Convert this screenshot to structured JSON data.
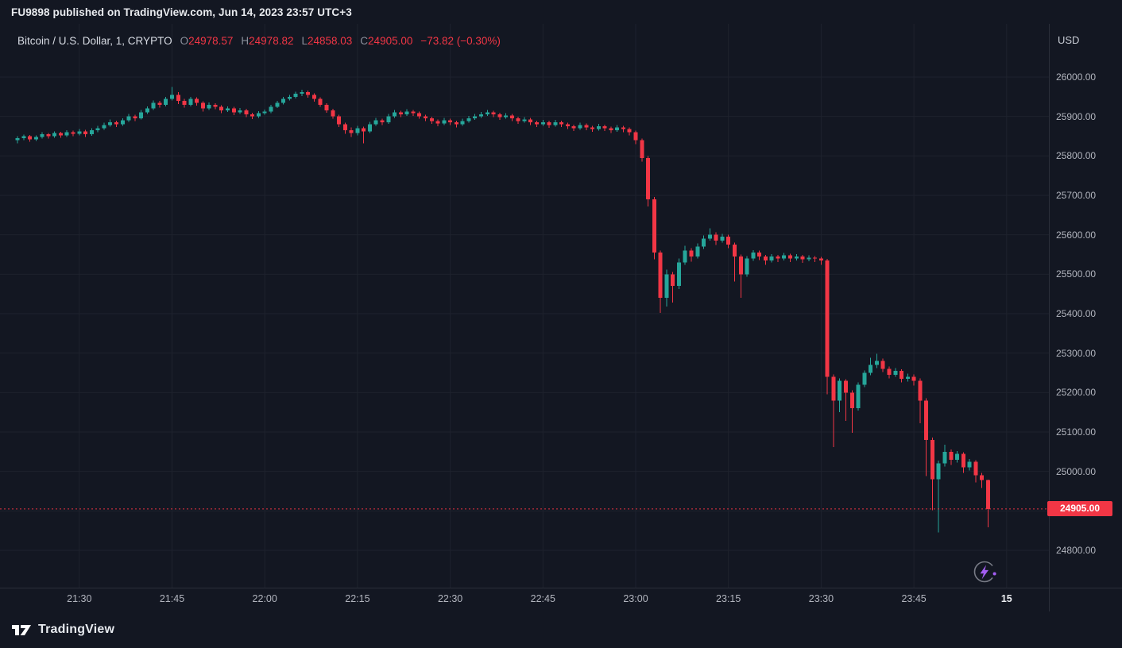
{
  "publish_bar": {
    "text": "FU9898 published on TradingView.com, Jun 14, 2023 23:57 UTC+3"
  },
  "header": {
    "symbol": "Bitcoin / U.S. Dollar, 1, CRYPTO",
    "ohlc": {
      "o_label": "O",
      "o_value": "24978.57",
      "h_label": "H",
      "h_value": "24978.82",
      "l_label": "L",
      "l_value": "24858.03",
      "c_label": "C",
      "c_value": "24905.00",
      "change": "−73.82 (−0.30%)"
    }
  },
  "price_axis": {
    "currency": "USD",
    "labels": [
      "26000.00",
      "25900.00",
      "25800.00",
      "25700.00",
      "25600.00",
      "25500.00",
      "25400.00",
      "25300.00",
      "25200.00",
      "25100.00",
      "25000.00",
      "24900.00",
      "24800.00"
    ],
    "current_price_label": "24905.00"
  },
  "footer": {
    "brand": "TradingView"
  },
  "colors": {
    "background": "#131722",
    "grid": "#1e222d",
    "separator": "#2a2e39",
    "up": "#26a69a",
    "down": "#f23645",
    "axis_text": "#b2b5be",
    "accent_purple": "#a35df2"
  },
  "chart_data": {
    "type": "candlestick",
    "title": "Bitcoin / U.S. Dollar",
    "symbol": "BTCUSD",
    "interval_minutes": 1,
    "exchange": "CRYPTO",
    "date": "Jun 14, 2023",
    "start_time": "21:20",
    "end_time": "23:57",
    "ylabel": "USD",
    "y_gridlines": [
      26000,
      25900,
      25800,
      25700,
      25600,
      25500,
      25400,
      25300,
      25200,
      25100,
      25000,
      24900,
      24800
    ],
    "current_price": 24905.0,
    "last_candle_ohlc": {
      "open": 24978.57,
      "high": 24978.82,
      "low": 24858.03,
      "close": 24905.0,
      "change": -73.82,
      "change_pct": -0.3
    },
    "time_ticks": [
      {
        "label": "21:30",
        "index": 10
      },
      {
        "label": "21:45",
        "index": 25
      },
      {
        "label": "22:00",
        "index": 40
      },
      {
        "label": "22:15",
        "index": 55
      },
      {
        "label": "22:30",
        "index": 70
      },
      {
        "label": "22:45",
        "index": 85
      },
      {
        "label": "23:00",
        "index": 100
      },
      {
        "label": "23:15",
        "index": 115
      },
      {
        "label": "23:30",
        "index": 130
      },
      {
        "label": "23:45",
        "index": 145
      },
      {
        "label": "15",
        "index": 160,
        "day": true
      }
    ],
    "candles": [
      [
        25840,
        25850,
        25832,
        25845
      ],
      [
        25845,
        25854,
        25840,
        25850
      ],
      [
        25850,
        25853,
        25836,
        25842
      ],
      [
        25842,
        25852,
        25838,
        25848
      ],
      [
        25848,
        25860,
        25844,
        25855
      ],
      [
        25855,
        25858,
        25844,
        25850
      ],
      [
        25850,
        25862,
        25846,
        25858
      ],
      [
        25858,
        25861,
        25846,
        25852
      ],
      [
        25852,
        25865,
        25848,
        25860
      ],
      [
        25860,
        25864,
        25850,
        25856
      ],
      [
        25856,
        25868,
        25852,
        25862
      ],
      [
        25862,
        25866,
        25848,
        25855
      ],
      [
        25855,
        25870,
        25851,
        25865
      ],
      [
        25865,
        25876,
        25860,
        25870
      ],
      [
        25870,
        25884,
        25866,
        25878
      ],
      [
        25878,
        25892,
        25874,
        25885
      ],
      [
        25885,
        25889,
        25873,
        25880
      ],
      [
        25880,
        25895,
        25876,
        25890
      ],
      [
        25890,
        25906,
        25886,
        25900
      ],
      [
        25900,
        25904,
        25888,
        25895
      ],
      [
        25895,
        25916,
        25892,
        25910
      ],
      [
        25910,
        25926,
        25906,
        25920
      ],
      [
        25920,
        25941,
        25916,
        25935
      ],
      [
        25935,
        25940,
        25922,
        25930
      ],
      [
        25930,
        25950,
        25926,
        25945
      ],
      [
        25945,
        25975,
        25941,
        25955
      ],
      [
        25955,
        25962,
        25932,
        25940
      ],
      [
        25940,
        25945,
        25922,
        25930
      ],
      [
        25930,
        25950,
        25926,
        25945
      ],
      [
        25945,
        25949,
        25928,
        25935
      ],
      [
        25935,
        25939,
        25912,
        25920
      ],
      [
        25920,
        25936,
        25916,
        25930
      ],
      [
        25930,
        25934,
        25918,
        25925
      ],
      [
        25925,
        25929,
        25908,
        25915
      ],
      [
        25915,
        25926,
        25911,
        25920
      ],
      [
        25920,
        25924,
        25903,
        25910
      ],
      [
        25910,
        25921,
        25906,
        25915
      ],
      [
        25915,
        25919,
        25898,
        25905
      ],
      [
        25905,
        25909,
        25893,
        25900
      ],
      [
        25900,
        25913,
        25896,
        25908
      ],
      [
        25908,
        25917,
        25904,
        25912
      ],
      [
        25912,
        25930,
        25908,
        25925
      ],
      [
        25925,
        25940,
        25921,
        25935
      ],
      [
        25935,
        25950,
        25931,
        25945
      ],
      [
        25945,
        25955,
        25941,
        25950
      ],
      [
        25950,
        25963,
        25946,
        25958
      ],
      [
        25958,
        25968,
        25952,
        25962
      ],
      [
        25962,
        25966,
        25948,
        25955
      ],
      [
        25955,
        25959,
        25938,
        25945
      ],
      [
        25945,
        25949,
        25924,
        25930
      ],
      [
        25930,
        25934,
        25909,
        25915
      ],
      [
        25915,
        25919,
        25894,
        25900
      ],
      [
        25900,
        25904,
        25873,
        25880
      ],
      [
        25880,
        25884,
        25856,
        25865
      ],
      [
        25865,
        25872,
        25848,
        25858
      ],
      [
        25858,
        25876,
        25852,
        25870
      ],
      [
        25870,
        25874,
        25832,
        25862
      ],
      [
        25862,
        25886,
        25858,
        25880
      ],
      [
        25880,
        25896,
        25876,
        25890
      ],
      [
        25890,
        25894,
        25878,
        25885
      ],
      [
        25885,
        25906,
        25881,
        25900
      ],
      [
        25900,
        25916,
        25896,
        25910
      ],
      [
        25910,
        25914,
        25898,
        25905
      ],
      [
        25905,
        25918,
        25901,
        25912
      ],
      [
        25912,
        25916,
        25901,
        25908
      ],
      [
        25908,
        25912,
        25894,
        25900
      ],
      [
        25900,
        25904,
        25888,
        25895
      ],
      [
        25895,
        25899,
        25881,
        25888
      ],
      [
        25888,
        25892,
        25875,
        25882
      ],
      [
        25882,
        25896,
        25878,
        25890
      ],
      [
        25890,
        25894,
        25878,
        25885
      ],
      [
        25885,
        25889,
        25872,
        25880
      ],
      [
        25880,
        25894,
        25876,
        25888
      ],
      [
        25888,
        25901,
        25884,
        25895
      ],
      [
        25895,
        25906,
        25891,
        25900
      ],
      [
        25900,
        25911,
        25896,
        25905
      ],
      [
        25905,
        25916,
        25901,
        25910
      ],
      [
        25910,
        25914,
        25898,
        25905
      ],
      [
        25905,
        25909,
        25891,
        25898
      ],
      [
        25898,
        25908,
        25894,
        25902
      ],
      [
        25902,
        25906,
        25888,
        25895
      ],
      [
        25895,
        25899,
        25881,
        25888
      ],
      [
        25888,
        25898,
        25884,
        25892
      ],
      [
        25892,
        25896,
        25878,
        25885
      ],
      [
        25885,
        25889,
        25873,
        25880
      ],
      [
        25880,
        25891,
        25876,
        25885
      ],
      [
        25885,
        25889,
        25871,
        25878
      ],
      [
        25878,
        25891,
        25874,
        25885
      ],
      [
        25885,
        25889,
        25873,
        25880
      ],
      [
        25880,
        25884,
        25868,
        25875
      ],
      [
        25875,
        25879,
        25863,
        25870
      ],
      [
        25870,
        25884,
        25866,
        25878
      ],
      [
        25878,
        25882,
        25865,
        25872
      ],
      [
        25872,
        25876,
        25861,
        25868
      ],
      [
        25868,
        25881,
        25864,
        25875
      ],
      [
        25875,
        25879,
        25863,
        25870
      ],
      [
        25870,
        25874,
        25858,
        25865
      ],
      [
        25865,
        25878,
        25861,
        25872
      ],
      [
        25872,
        25876,
        25860,
        25868
      ],
      [
        25868,
        25872,
        25852,
        25860
      ],
      [
        25860,
        25864,
        25830,
        25840
      ],
      [
        25840,
        25844,
        25786,
        25795
      ],
      [
        25795,
        25800,
        25672,
        25690
      ],
      [
        25690,
        25696,
        25538,
        25555
      ],
      [
        25555,
        25560,
        25402,
        25440
      ],
      [
        25440,
        25512,
        25418,
        25500
      ],
      [
        25500,
        25506,
        25428,
        25470
      ],
      [
        25470,
        25540,
        25462,
        25530
      ],
      [
        25530,
        25572,
        25524,
        25560
      ],
      [
        25560,
        25566,
        25532,
        25545
      ],
      [
        25545,
        25578,
        25540,
        25570
      ],
      [
        25570,
        25598,
        25564,
        25590
      ],
      [
        25590,
        25616,
        25585,
        25600
      ],
      [
        25600,
        25606,
        25574,
        25585
      ],
      [
        25585,
        25602,
        25580,
        25595
      ],
      [
        25595,
        25600,
        25566,
        25575
      ],
      [
        25575,
        25580,
        25482,
        25545
      ],
      [
        25545,
        25550,
        25440,
        25500
      ],
      [
        25500,
        25546,
        25494,
        25540
      ],
      [
        25540,
        25561,
        25534,
        25555
      ],
      [
        25555,
        25560,
        25536,
        25545
      ],
      [
        25545,
        25549,
        25524,
        25535
      ],
      [
        25535,
        25551,
        25530,
        25545
      ],
      [
        25545,
        25549,
        25531,
        25540
      ],
      [
        25540,
        25554,
        25535,
        25548
      ],
      [
        25548,
        25552,
        25531,
        25540
      ],
      [
        25540,
        25551,
        25535,
        25545
      ],
      [
        25545,
        25549,
        25529,
        25538
      ],
      [
        25538,
        25548,
        25533,
        25542
      ],
      [
        25542,
        25546,
        25531,
        25540
      ],
      [
        25540,
        25544,
        25524,
        25535
      ],
      [
        25535,
        25539,
        25196,
        25240
      ],
      [
        25240,
        25246,
        25062,
        25180
      ],
      [
        25180,
        25236,
        25150,
        25230
      ],
      [
        25230,
        25234,
        25128,
        25200
      ],
      [
        25200,
        25206,
        25098,
        25160
      ],
      [
        25160,
        25226,
        25154,
        25220
      ],
      [
        25220,
        25256,
        25214,
        25250
      ],
      [
        25250,
        25288,
        25244,
        25270
      ],
      [
        25270,
        25298,
        25262,
        25280
      ],
      [
        25280,
        25286,
        25252,
        25260
      ],
      [
        25260,
        25266,
        25236,
        25245
      ],
      [
        25245,
        25262,
        25240,
        25255
      ],
      [
        25255,
        25259,
        25226,
        25235
      ],
      [
        25235,
        25248,
        25228,
        25240
      ],
      [
        25240,
        25246,
        25218,
        25230
      ],
      [
        25230,
        25236,
        25122,
        25180
      ],
      [
        25180,
        25186,
        24988,
        25080
      ],
      [
        25080,
        25086,
        24902,
        24980
      ],
      [
        24980,
        25028,
        24845,
        25020
      ],
      [
        25020,
        25068,
        25012,
        25050
      ],
      [
        25050,
        25056,
        25016,
        25030
      ],
      [
        25030,
        25052,
        25022,
        25045
      ],
      [
        25045,
        25049,
        24996,
        25010
      ],
      [
        25010,
        25032,
        25002,
        25025
      ],
      [
        25025,
        25029,
        24972,
        24990
      ],
      [
        24990,
        24996,
        24958,
        24978.57
      ],
      [
        24978.57,
        24978.82,
        24858.03,
        24905
      ]
    ]
  }
}
